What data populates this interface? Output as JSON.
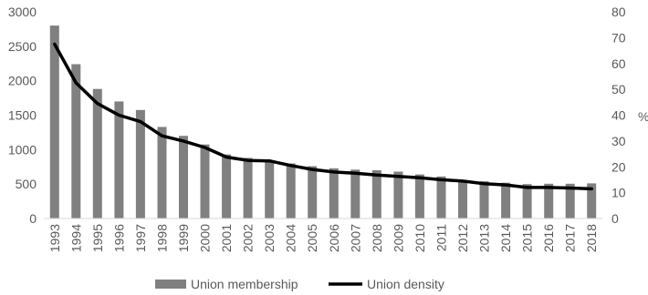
{
  "chart_data": {
    "type": "bar",
    "categories": [
      "1993",
      "1994",
      "1995",
      "1996",
      "1997",
      "1998",
      "1999",
      "2000",
      "2001",
      "2002",
      "2003",
      "2004",
      "2005",
      "2006",
      "2007",
      "2008",
      "2009",
      "2010",
      "2011",
      "2012",
      "2013",
      "2014",
      "2015",
      "2016",
      "2017",
      "2018"
    ],
    "series": [
      {
        "name": "Union membership",
        "type": "bar",
        "axis": "left",
        "color": "#808080",
        "values": [
          2800,
          2240,
          1880,
          1700,
          1575,
          1330,
          1200,
          1075,
          930,
          880,
          845,
          800,
          760,
          730,
          710,
          700,
          680,
          640,
          610,
          560,
          540,
          520,
          500,
          505,
          505,
          510
        ]
      },
      {
        "name": "Union density",
        "type": "line",
        "axis": "right",
        "color": "#000000",
        "values": [
          67.5,
          52.5,
          44.5,
          40,
          37.5,
          32,
          30,
          27.5,
          23.8,
          22.5,
          22.3,
          20.5,
          19,
          18,
          17.5,
          16.8,
          16.3,
          15.8,
          15,
          14.5,
          13.5,
          13,
          12,
          12,
          11.8,
          11.5
        ]
      }
    ],
    "y_left": {
      "lim": [
        0,
        3000
      ],
      "ticks": [
        "0",
        "500",
        "1000",
        "1500",
        "2000",
        "2500",
        "3000"
      ]
    },
    "y_right": {
      "label": "%",
      "lim": [
        0,
        80
      ],
      "ticks": [
        "0",
        "10",
        "20",
        "30",
        "40",
        "50",
        "60",
        "70",
        "80"
      ]
    },
    "grid": false,
    "legend": {
      "placement": "bottom",
      "entries": [
        "Union membership",
        "Union density"
      ]
    }
  }
}
